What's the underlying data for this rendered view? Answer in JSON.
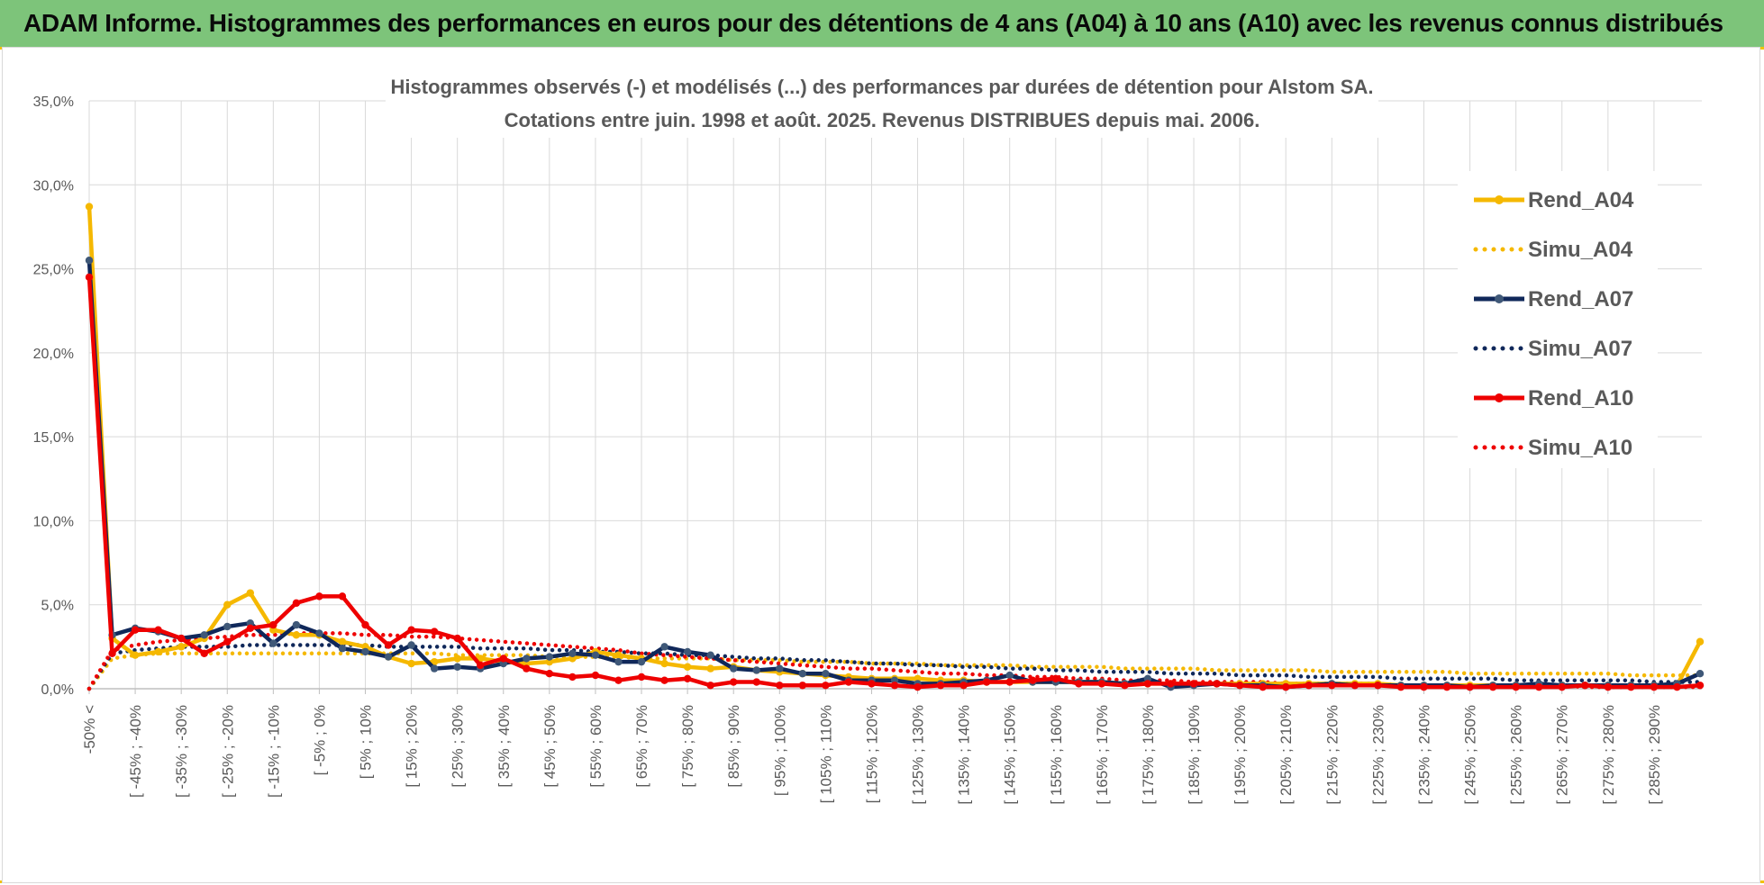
{
  "header": {
    "title": "ADAM Informe. Histogrammes des performances en euros pour des détentions de 4 ans (A04) à 10 ans (A10) avec les revenus connus distribués"
  },
  "chart_data": {
    "type": "line",
    "title_line1": "Histogrammes observés (-) et modélisés (...) des performances par durées de détention pour Alstom SA.",
    "title_line2": "Cotations entre juin. 1998 et août. 2025. Revenus DISTRIBUES depuis mai. 2006.",
    "y_ticks": [
      "0,0%",
      "5,0%",
      "10,0%",
      "15,0%",
      "20,0%",
      "25,0%",
      "30,0%",
      "35,0%"
    ],
    "ylim": [
      0,
      35
    ],
    "x_labels": [
      "-50% <",
      "[ -45% ; -40%",
      "[ -35% ; -30%",
      "[ -25% ; -20%",
      "[ -15% ; -10%",
      "[ -5% ; 0%",
      "[ 5% ; 10%",
      "[ 15% ; 20%",
      "[ 25% ; 30%",
      "[ 35% ; 40%",
      "[ 45% ; 50%",
      "[ 55% ; 60%",
      "[ 65% ; 70%",
      "[ 75% ; 80%",
      "[ 85% ; 90%",
      "[ 95% ; 100%",
      "[ 105% ; 110%",
      "[ 115% ; 120%",
      "[ 125% ; 130%",
      "[ 135% ; 140%",
      "[ 145% ; 150%",
      "[ 155% ; 160%",
      "[ 165% ; 170%",
      "[ 175% ; 180%",
      "[ 185% ; 190%",
      "[ 195% ; 200%",
      "[ 205% ; 210%",
      "[ 215% ; 220%",
      "[ 225% ; 230%",
      "[ 235% ; 240%",
      "[ 245% ; 250%",
      "[ 255% ; 260%",
      "[ 265% ; 270%",
      "[ 275% ; 280%",
      "[ 285% ; 290%"
    ],
    "category_count": 71,
    "grid": true,
    "legend_position": "right",
    "series": [
      {
        "name": "Rend_A04",
        "style": "solid",
        "color": "#f5b800",
        "values": [
          28.7,
          3.0,
          2.0,
          2.2,
          2.5,
          3.0,
          5.0,
          5.7,
          3.5,
          3.2,
          3.2,
          2.8,
          2.5,
          1.9,
          1.5,
          1.6,
          1.8,
          1.8,
          1.6,
          1.5,
          1.6,
          1.8,
          2.2,
          2.0,
          1.8,
          1.5,
          1.3,
          1.2,
          1.3,
          1.1,
          1.0,
          0.9,
          0.8,
          0.7,
          0.6,
          0.6,
          0.6,
          0.5,
          0.5,
          0.4,
          0.4,
          0.4,
          0.4,
          0.4,
          0.4,
          0.3,
          0.3,
          0.3,
          0.3,
          0.3,
          0.3,
          0.3,
          0.3,
          0.3,
          0.3,
          0.3,
          0.3,
          0.2,
          0.2,
          0.2,
          0.2,
          0.2,
          0.2,
          0.2,
          0.2,
          0.2,
          0.2,
          0.2,
          0.2,
          0.2,
          2.8
        ]
      },
      {
        "name": "Simu_A04",
        "style": "dotted",
        "color": "#f5b800",
        "values": [
          0.0,
          1.8,
          2.0,
          2.1,
          2.1,
          2.1,
          2.1,
          2.1,
          2.1,
          2.1,
          2.1,
          2.1,
          2.1,
          2.1,
          2.1,
          2.1,
          2.0,
          2.0,
          2.0,
          2.0,
          1.9,
          1.9,
          1.9,
          1.9,
          1.8,
          1.8,
          1.8,
          1.8,
          1.7,
          1.7,
          1.7,
          1.6,
          1.6,
          1.6,
          1.5,
          1.5,
          1.5,
          1.4,
          1.4,
          1.4,
          1.4,
          1.3,
          1.3,
          1.3,
          1.3,
          1.2,
          1.2,
          1.2,
          1.2,
          1.1,
          1.1,
          1.1,
          1.1,
          1.1,
          1.0,
          1.0,
          1.0,
          1.0,
          1.0,
          1.0,
          0.9,
          0.9,
          0.9,
          0.9,
          0.9,
          0.9,
          0.9,
          0.8,
          0.8,
          0.8,
          0.8
        ]
      },
      {
        "name": "Rend_A07",
        "style": "solid",
        "color": "#10285a",
        "values": [
          25.5,
          3.2,
          3.6,
          3.4,
          3.0,
          3.2,
          3.7,
          3.9,
          2.7,
          3.8,
          3.3,
          2.4,
          2.2,
          1.9,
          2.6,
          1.2,
          1.3,
          1.2,
          1.5,
          1.8,
          1.9,
          2.1,
          2.0,
          1.6,
          1.6,
          2.5,
          2.2,
          2.0,
          1.2,
          1.1,
          1.2,
          0.9,
          0.9,
          0.5,
          0.5,
          0.5,
          0.3,
          0.3,
          0.4,
          0.5,
          0.8,
          0.4,
          0.4,
          0.4,
          0.4,
          0.3,
          0.6,
          0.1,
          0.2,
          0.3,
          0.2,
          0.2,
          0.1,
          0.2,
          0.3,
          0.2,
          0.2,
          0.2,
          0.2,
          0.2,
          0.1,
          0.2,
          0.2,
          0.3,
          0.2,
          0.2,
          0.2,
          0.2,
          0.2,
          0.3,
          0.9
        ]
      },
      {
        "name": "Simu_A07",
        "style": "dotted",
        "color": "#10285a",
        "values": [
          0.0,
          2.1,
          2.3,
          2.4,
          2.5,
          2.5,
          2.5,
          2.6,
          2.6,
          2.6,
          2.6,
          2.6,
          2.6,
          2.5,
          2.5,
          2.5,
          2.5,
          2.4,
          2.4,
          2.4,
          2.3,
          2.3,
          2.2,
          2.2,
          2.1,
          2.1,
          2.0,
          2.0,
          1.9,
          1.8,
          1.8,
          1.7,
          1.7,
          1.6,
          1.5,
          1.5,
          1.4,
          1.4,
          1.3,
          1.3,
          1.2,
          1.2,
          1.1,
          1.1,
          1.0,
          1.0,
          1.0,
          0.9,
          0.9,
          0.9,
          0.8,
          0.8,
          0.8,
          0.7,
          0.7,
          0.7,
          0.7,
          0.6,
          0.6,
          0.6,
          0.6,
          0.6,
          0.5,
          0.5,
          0.5,
          0.5,
          0.5,
          0.5,
          0.4,
          0.4,
          0.4
        ]
      },
      {
        "name": "Rend_A10",
        "style": "solid",
        "color": "#ee0000",
        "values": [
          24.5,
          2.1,
          3.5,
          3.5,
          3.0,
          2.1,
          2.8,
          3.6,
          3.8,
          5.1,
          5.5,
          5.5,
          3.8,
          2.6,
          3.5,
          3.4,
          3.0,
          1.4,
          1.8,
          1.2,
          0.9,
          0.7,
          0.8,
          0.5,
          0.7,
          0.5,
          0.6,
          0.2,
          0.4,
          0.4,
          0.2,
          0.2,
          0.2,
          0.4,
          0.3,
          0.2,
          0.1,
          0.2,
          0.2,
          0.4,
          0.4,
          0.5,
          0.6,
          0.3,
          0.3,
          0.2,
          0.3,
          0.3,
          0.3,
          0.3,
          0.2,
          0.1,
          0.1,
          0.2,
          0.2,
          0.2,
          0.2,
          0.1,
          0.1,
          0.1,
          0.1,
          0.1,
          0.1,
          0.1,
          0.1,
          0.2,
          0.1,
          0.1,
          0.1,
          0.1,
          0.2
        ]
      },
      {
        "name": "Simu_A10",
        "style": "dotted",
        "color": "#ee0000",
        "values": [
          0.0,
          2.3,
          2.6,
          2.8,
          2.9,
          3.0,
          3.1,
          3.2,
          3.2,
          3.3,
          3.3,
          3.3,
          3.2,
          3.2,
          3.1,
          3.1,
          3.0,
          2.9,
          2.8,
          2.7,
          2.6,
          2.5,
          2.4,
          2.3,
          2.1,
          2.0,
          1.9,
          1.8,
          1.7,
          1.6,
          1.5,
          1.4,
          1.3,
          1.2,
          1.2,
          1.1,
          1.0,
          0.9,
          0.9,
          0.8,
          0.8,
          0.7,
          0.7,
          0.6,
          0.6,
          0.5,
          0.5,
          0.5,
          0.4,
          0.4,
          0.4,
          0.4,
          0.3,
          0.3,
          0.3,
          0.3,
          0.3,
          0.2,
          0.2,
          0.2,
          0.2,
          0.2,
          0.2,
          0.2,
          0.2,
          0.1,
          0.1,
          0.1,
          0.1,
          0.1,
          0.1
        ]
      }
    ]
  }
}
